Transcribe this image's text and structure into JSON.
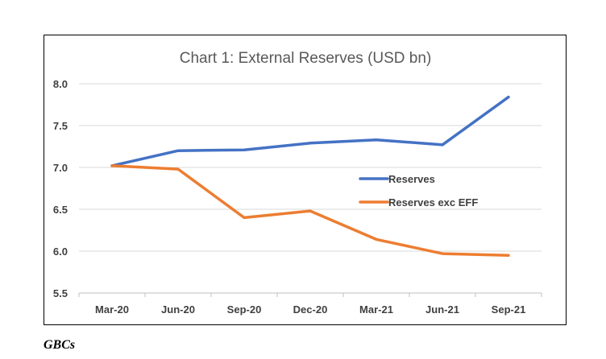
{
  "chart_data": {
    "type": "line",
    "title": "Chart 1: External Reserves (USD bn)",
    "xlabel": "",
    "ylabel": "",
    "categories": [
      "Mar-20",
      "Jun-20",
      "Sep-20",
      "Dec-20",
      "Mar-21",
      "Jun-21",
      "Sep-21"
    ],
    "ylim": [
      5.5,
      8.0
    ],
    "yticks": [
      "5.5",
      "6.0",
      "6.5",
      "7.0",
      "7.5",
      "8.0"
    ],
    "grid": true,
    "legend_position": "right",
    "series": [
      {
        "name": "Reserves",
        "color": "#4472c4",
        "values": [
          7.02,
          7.2,
          7.21,
          7.29,
          7.33,
          7.27,
          7.84
        ]
      },
      {
        "name": "Reserves exc EFF",
        "color": "#ed7d31",
        "values": [
          7.02,
          6.98,
          6.4,
          6.48,
          6.14,
          5.97,
          5.95
        ]
      }
    ]
  },
  "source_note": "GBCs"
}
